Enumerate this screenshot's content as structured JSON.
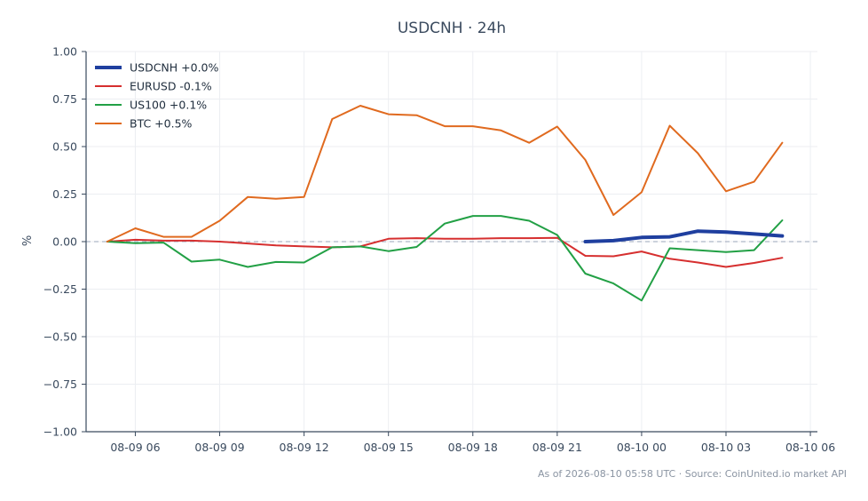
{
  "chart_data": {
    "type": "line",
    "title": "USDCNH · 24h",
    "ylabel": "%",
    "xlabel": "",
    "ylim": [
      -1.0,
      1.0
    ],
    "xlim": [
      "08-09 04:15",
      "08-10 06:15"
    ],
    "yticks": [
      "1.00",
      "0.75",
      "0.50",
      "0.25",
      "0.00",
      "−0.25",
      "−0.50",
      "−0.75",
      "−1.00"
    ],
    "ytick_values": [
      1.0,
      0.75,
      0.5,
      0.25,
      0.0,
      -0.25,
      -0.5,
      -0.75,
      -1.0
    ],
    "xticks": [
      "08-09 06",
      "08-09 09",
      "08-09 12",
      "08-09 15",
      "08-09 18",
      "08-09 21",
      "08-10 00",
      "08-10 03",
      "08-10 06"
    ],
    "xtick_times": [
      "08-09 06:00",
      "08-09 09:00",
      "08-09 12:00",
      "08-09 15:00",
      "08-09 18:00",
      "08-09 21:00",
      "08-10 00:00",
      "08-10 03:00",
      "08-10 06:00"
    ],
    "grid": true,
    "zero_line": true,
    "legend_position": "top-left",
    "series": [
      {
        "name": "USDCNH +0.0%",
        "color": "#1f3f9f",
        "emphasis": true,
        "x": [
          "08-09 22:00",
          "08-09 23:00",
          "08-10 00:00",
          "08-10 01:00",
          "08-10 02:00",
          "08-10 03:00",
          "08-10 04:00",
          "08-10 05:00"
        ],
        "y": [
          0.0,
          0.005,
          0.022,
          0.025,
          0.055,
          0.05,
          0.04,
          0.03
        ]
      },
      {
        "name": "EURUSD -0.1%",
        "color": "#d62f2f",
        "x": [
          "08-09 05:00",
          "08-09 06:00",
          "08-09 07:00",
          "08-09 08:00",
          "08-09 09:00",
          "08-09 10:00",
          "08-09 11:00",
          "08-09 12:00",
          "08-09 13:00",
          "08-09 14:00",
          "08-09 15:00",
          "08-09 16:00",
          "08-09 17:00",
          "08-09 18:00",
          "08-09 19:00",
          "08-09 20:00",
          "08-09 21:00",
          "08-09 22:00",
          "08-09 23:00",
          "08-10 00:00",
          "08-10 01:00",
          "08-10 02:00",
          "08-10 03:00",
          "08-10 04:00",
          "08-10 05:00"
        ],
        "y": [
          0.0,
          0.01,
          0.005,
          0.005,
          0.0,
          -0.01,
          -0.02,
          -0.025,
          -0.03,
          -0.025,
          0.015,
          0.018,
          0.015,
          0.015,
          0.018,
          0.018,
          0.02,
          -0.075,
          -0.077,
          -0.052,
          -0.09,
          -0.11,
          -0.133,
          -0.112,
          -0.085
        ]
      },
      {
        "name": "US100 +0.1%",
        "color": "#22a045",
        "x": [
          "08-09 05:00",
          "08-09 06:00",
          "08-09 07:00",
          "08-09 08:00",
          "08-09 09:00",
          "08-09 10:00",
          "08-09 11:00",
          "08-09 12:00",
          "08-09 13:00",
          "08-09 14:00",
          "08-09 15:00",
          "08-09 16:00",
          "08-09 17:00",
          "08-09 18:00",
          "08-09 19:00",
          "08-09 20:00",
          "08-09 21:00",
          "08-09 22:00",
          "08-09 23:00",
          "08-10 00:00",
          "08-10 01:00",
          "08-10 02:00",
          "08-10 03:00",
          "08-10 04:00",
          "08-10 05:00"
        ],
        "y": [
          0.0,
          -0.008,
          -0.005,
          -0.105,
          -0.095,
          -0.133,
          -0.107,
          -0.11,
          -0.03,
          -0.025,
          -0.05,
          -0.028,
          0.095,
          0.135,
          0.135,
          0.11,
          0.035,
          -0.168,
          -0.22,
          -0.31,
          -0.035,
          -0.045,
          -0.055,
          -0.045,
          0.112
        ]
      },
      {
        "name": "BTC +0.5%",
        "color": "#e06a1f",
        "x": [
          "08-09 05:00",
          "08-09 06:00",
          "08-09 07:00",
          "08-09 08:00",
          "08-09 09:00",
          "08-09 10:00",
          "08-09 11:00",
          "08-09 12:00",
          "08-09 13:00",
          "08-09 14:00",
          "08-09 15:00",
          "08-09 16:00",
          "08-09 17:00",
          "08-09 18:00",
          "08-09 19:00",
          "08-09 20:00",
          "08-09 21:00",
          "08-09 22:00",
          "08-09 23:00",
          "08-10 00:00",
          "08-10 01:00",
          "08-10 02:00",
          "08-10 03:00",
          "08-10 04:00",
          "08-10 05:00"
        ],
        "y": [
          0.0,
          0.07,
          0.025,
          0.025,
          0.11,
          0.235,
          0.225,
          0.235,
          0.645,
          0.715,
          0.67,
          0.665,
          0.607,
          0.607,
          0.585,
          0.52,
          0.605,
          0.43,
          0.14,
          0.26,
          0.61,
          0.465,
          0.265,
          0.315,
          0.52
        ]
      }
    ],
    "footer": "As of 2026-08-10 05:58 UTC · Source: CoinUnited.io market API"
  }
}
